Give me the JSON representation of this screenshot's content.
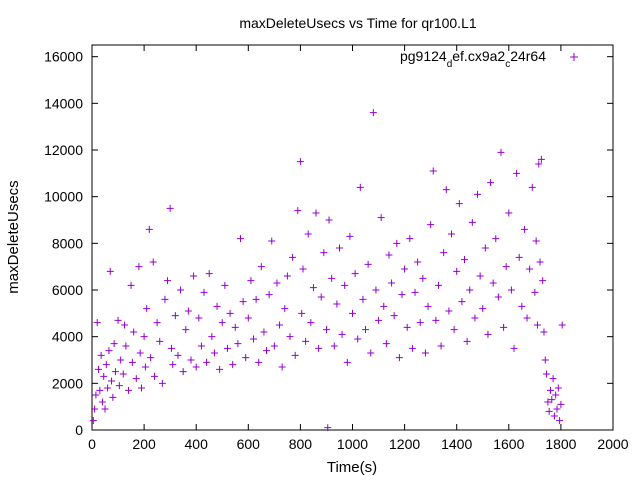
{
  "chart_data": {
    "type": "scatter",
    "title": "maxDeleteUsecs vs Time for qr100.L1",
    "xlabel": "Time(s)",
    "ylabel": "maxDeleteUsecs",
    "xlim": [
      0,
      2000
    ],
    "ylim": [
      0,
      16500
    ],
    "x_ticks": [
      0,
      200,
      400,
      600,
      800,
      1000,
      1200,
      1400,
      1600,
      1800,
      2000
    ],
    "y_ticks": [
      0,
      2000,
      4000,
      6000,
      8000,
      10000,
      12000,
      14000,
      16000
    ],
    "x_tick_labels": [
      "0",
      "200",
      "400",
      "600",
      "800",
      "1000",
      "1200",
      "1400",
      "1600",
      "1800",
      "2000"
    ],
    "y_tick_labels": [
      "0",
      "2000",
      "4000",
      "6000",
      "8000",
      "10000",
      "12000",
      "14000",
      "16000"
    ],
    "grid": false,
    "legend_position": "top-right",
    "marker": "+",
    "series": [
      {
        "name": "pg9124_def.cx9a2_c24r64",
        "legend_parts": {
          "a": "pg9124",
          "sub1": "d",
          "b": "ef.cx9a2",
          "sub2": "c",
          "c": "24r64"
        },
        "color": "#9400d3",
        "points": [
          [
            5,
            400
          ],
          [
            10,
            900
          ],
          [
            15,
            1500
          ],
          [
            20,
            4600
          ],
          [
            25,
            2600
          ],
          [
            30,
            1700
          ],
          [
            35,
            3200
          ],
          [
            40,
            1200
          ],
          [
            45,
            2300
          ],
          [
            50,
            900
          ],
          [
            55,
            2800
          ],
          [
            60,
            1800
          ],
          [
            65,
            3400
          ],
          [
            70,
            6800
          ],
          [
            75,
            2100
          ],
          [
            80,
            1400
          ],
          [
            85,
            3700
          ],
          [
            90,
            2500
          ],
          [
            100,
            4700
          ],
          [
            105,
            1900
          ],
          [
            110,
            3000
          ],
          [
            120,
            2400
          ],
          [
            125,
            4500
          ],
          [
            130,
            3600
          ],
          [
            140,
            1700
          ],
          [
            150,
            6200
          ],
          [
            155,
            2900
          ],
          [
            160,
            4200
          ],
          [
            170,
            2200
          ],
          [
            180,
            7000
          ],
          [
            185,
            3300
          ],
          [
            190,
            1800
          ],
          [
            200,
            4000
          ],
          [
            205,
            2700
          ],
          [
            210,
            5200
          ],
          [
            220,
            8600
          ],
          [
            225,
            3100
          ],
          [
            235,
            7200
          ],
          [
            240,
            2300
          ],
          [
            250,
            4600
          ],
          [
            260,
            3800
          ],
          [
            270,
            2000
          ],
          [
            280,
            5600
          ],
          [
            290,
            6400
          ],
          [
            300,
            9500
          ],
          [
            305,
            3500
          ],
          [
            310,
            2800
          ],
          [
            320,
            4900
          ],
          [
            330,
            3200
          ],
          [
            340,
            6000
          ],
          [
            350,
            2500
          ],
          [
            360,
            4300
          ],
          [
            370,
            5100
          ],
          [
            380,
            3000
          ],
          [
            390,
            6600
          ],
          [
            400,
            2700
          ],
          [
            410,
            4800
          ],
          [
            420,
            3600
          ],
          [
            430,
            5900
          ],
          [
            440,
            2900
          ],
          [
            450,
            6700
          ],
          [
            460,
            4000
          ],
          [
            470,
            3300
          ],
          [
            480,
            5300
          ],
          [
            490,
            2600
          ],
          [
            500,
            4600
          ],
          [
            510,
            6200
          ],
          [
            520,
            3500
          ],
          [
            530,
            5000
          ],
          [
            540,
            2800
          ],
          [
            550,
            4400
          ],
          [
            560,
            3700
          ],
          [
            570,
            8200
          ],
          [
            580,
            5500
          ],
          [
            590,
            3100
          ],
          [
            600,
            4800
          ],
          [
            610,
            6400
          ],
          [
            620,
            3900
          ],
          [
            630,
            5600
          ],
          [
            640,
            2900
          ],
          [
            650,
            7000
          ],
          [
            660,
            4200
          ],
          [
            670,
            3400
          ],
          [
            680,
            5800
          ],
          [
            690,
            8100
          ],
          [
            700,
            3600
          ],
          [
            710,
            6300
          ],
          [
            720,
            4500
          ],
          [
            730,
            2700
          ],
          [
            740,
            5200
          ],
          [
            750,
            6600
          ],
          [
            760,
            4000
          ],
          [
            770,
            7400
          ],
          [
            780,
            3200
          ],
          [
            790,
            9400
          ],
          [
            800,
            11500
          ],
          [
            805,
            5000
          ],
          [
            810,
            6900
          ],
          [
            820,
            3800
          ],
          [
            830,
            8400
          ],
          [
            840,
            4600
          ],
          [
            850,
            6100
          ],
          [
            860,
            9300
          ],
          [
            870,
            3500
          ],
          [
            880,
            5700
          ],
          [
            890,
            7600
          ],
          [
            900,
            4300
          ],
          [
            905,
            100
          ],
          [
            910,
            9000
          ],
          [
            920,
            6500
          ],
          [
            930,
            3600
          ],
          [
            940,
            5400
          ],
          [
            950,
            7800
          ],
          [
            960,
            4100
          ],
          [
            970,
            6200
          ],
          [
            980,
            2900
          ],
          [
            990,
            8300
          ],
          [
            1000,
            5000
          ],
          [
            1010,
            6700
          ],
          [
            1020,
            3900
          ],
          [
            1030,
            10400
          ],
          [
            1040,
            5600
          ],
          [
            1050,
            4300
          ],
          [
            1060,
            7100
          ],
          [
            1070,
            3300
          ],
          [
            1080,
            13600
          ],
          [
            1090,
            6000
          ],
          [
            1100,
            4700
          ],
          [
            1110,
            9100
          ],
          [
            1120,
            5300
          ],
          [
            1130,
            3700
          ],
          [
            1140,
            7500
          ],
          [
            1150,
            6300
          ],
          [
            1160,
            4900
          ],
          [
            1170,
            8000
          ],
          [
            1180,
            3100
          ],
          [
            1190,
            5800
          ],
          [
            1200,
            6900
          ],
          [
            1210,
            4400
          ],
          [
            1220,
            8200
          ],
          [
            1230,
            3500
          ],
          [
            1240,
            5900
          ],
          [
            1250,
            7200
          ],
          [
            1260,
            4600
          ],
          [
            1270,
            6500
          ],
          [
            1280,
            3300
          ],
          [
            1290,
            5300
          ],
          [
            1300,
            8800
          ],
          [
            1310,
            11100
          ],
          [
            1320,
            4700
          ],
          [
            1330,
            6200
          ],
          [
            1340,
            3600
          ],
          [
            1350,
            7600
          ],
          [
            1360,
            10300
          ],
          [
            1370,
            5100
          ],
          [
            1380,
            8400
          ],
          [
            1390,
            4300
          ],
          [
            1400,
            6800
          ],
          [
            1410,
            9700
          ],
          [
            1420,
            5500
          ],
          [
            1430,
            7300
          ],
          [
            1440,
            3800
          ],
          [
            1450,
            6000
          ],
          [
            1460,
            8900
          ],
          [
            1470,
            4800
          ],
          [
            1480,
            10100
          ],
          [
            1490,
            6600
          ],
          [
            1500,
            5200
          ],
          [
            1510,
            7800
          ],
          [
            1520,
            4100
          ],
          [
            1530,
            10600
          ],
          [
            1540,
            6300
          ],
          [
            1550,
            8200
          ],
          [
            1560,
            5700
          ],
          [
            1570,
            11900
          ],
          [
            1580,
            4400
          ],
          [
            1590,
            7000
          ],
          [
            1600,
            9300
          ],
          [
            1610,
            6000
          ],
          [
            1620,
            3500
          ],
          [
            1630,
            11000
          ],
          [
            1640,
            7400
          ],
          [
            1650,
            5300
          ],
          [
            1660,
            8600
          ],
          [
            1670,
            4800
          ],
          [
            1680,
            6900
          ],
          [
            1690,
            10400
          ],
          [
            1700,
            5900
          ],
          [
            1705,
            8100
          ],
          [
            1710,
            4500
          ],
          [
            1715,
            11400
          ],
          [
            1720,
            7200
          ],
          [
            1725,
            11600
          ],
          [
            1730,
            6400
          ],
          [
            1735,
            4200
          ],
          [
            1740,
            3000
          ],
          [
            1745,
            2400
          ],
          [
            1750,
            1200
          ],
          [
            1755,
            800
          ],
          [
            1760,
            1700
          ],
          [
            1765,
            1300
          ],
          [
            1770,
            2200
          ],
          [
            1775,
            600
          ],
          [
            1780,
            1500
          ],
          [
            1785,
            900
          ],
          [
            1790,
            1800
          ],
          [
            1795,
            400
          ],
          [
            1800,
            1100
          ],
          [
            1805,
            4500
          ]
        ]
      }
    ]
  }
}
